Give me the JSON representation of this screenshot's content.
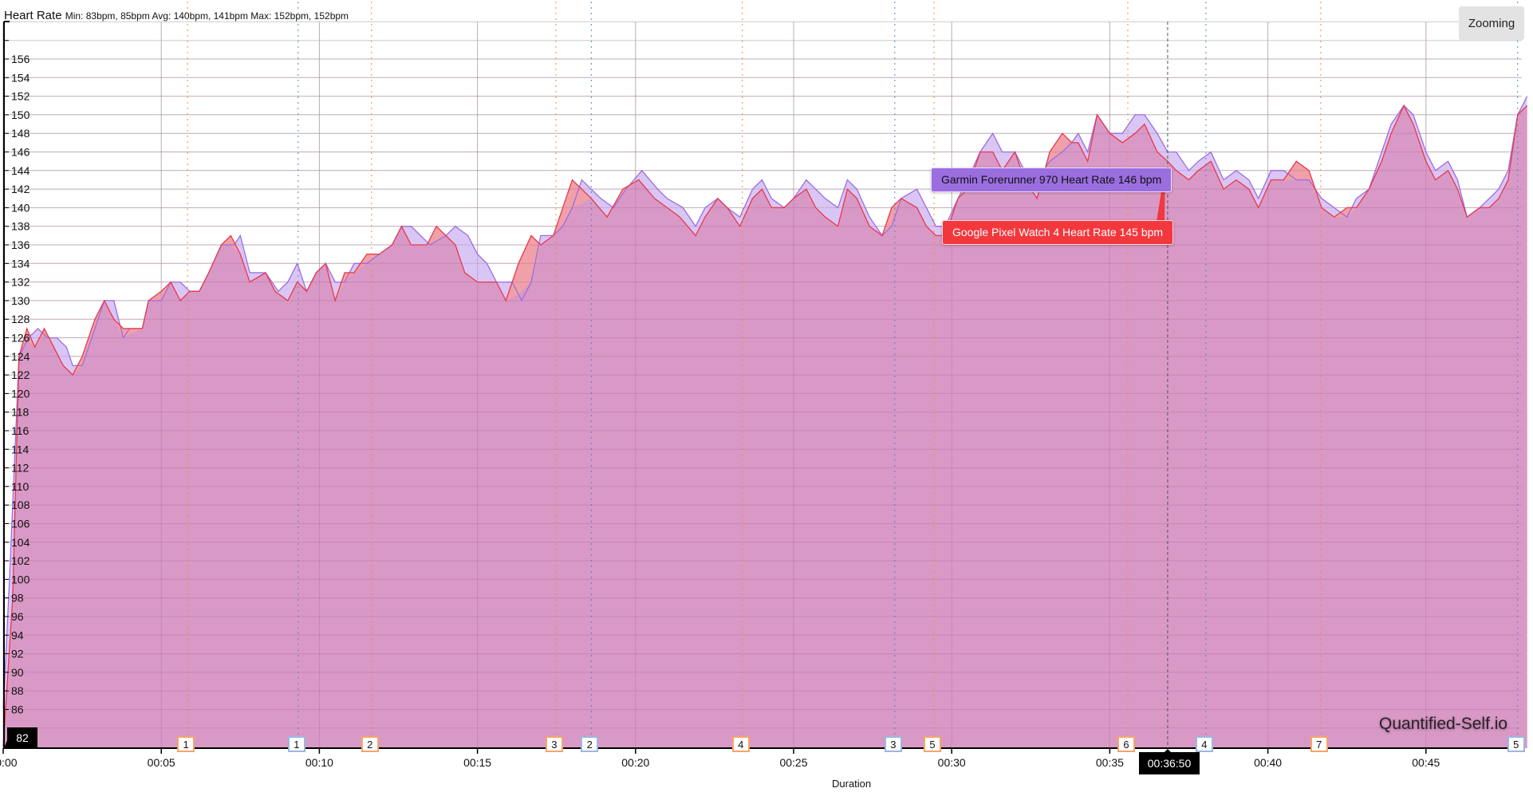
{
  "header": {
    "title": "Heart Rate",
    "stats": "Min: 83bpm, 85bpm Avg: 140bpm, 141bpm Max: 152bpm, 152bpm"
  },
  "zoom_button": {
    "label": "Zooming"
  },
  "watermark": "Quantified-Self.io",
  "cursor": {
    "time_label": "00:36:50",
    "min": 36.83,
    "y_badge": "82"
  },
  "tooltips": [
    {
      "label": "Garmin Forerunner 970 Heart Rate 146 bpm",
      "color": "#9b6ee0"
    },
    {
      "label": "Google Pixel Watch 4 Heart Rate 145 bpm",
      "color": "#f2383d"
    }
  ],
  "colors": {
    "fill": "#d999c6",
    "garmin_line": "#9b6ee0",
    "garmin_fill": "#d9c6f5",
    "pixel_line": "#e8384a",
    "pixel_fill": "#f0a0a8",
    "orange_lap": "#f4a46a",
    "blue_lap": "#9ab8dc",
    "grid": "#cccccc"
  },
  "chart_data": {
    "type": "area",
    "title": "Heart Rate",
    "xlabel": "Duration",
    "ylabel": "",
    "x_unit": "minutes",
    "xlim": [
      0,
      48.2
    ],
    "ylim": [
      82,
      160
    ],
    "yticks": [
      86,
      88,
      90,
      92,
      94,
      96,
      98,
      100,
      102,
      104,
      106,
      108,
      110,
      112,
      114,
      116,
      118,
      120,
      122,
      124,
      126,
      128,
      130,
      132,
      134,
      136,
      138,
      140,
      142,
      144,
      146,
      148,
      150,
      152,
      154,
      156
    ],
    "xticks": [
      {
        "min": 0,
        "label": "00:00"
      },
      {
        "min": 5,
        "label": "00:05"
      },
      {
        "min": 10,
        "label": "00:10"
      },
      {
        "min": 15,
        "label": "00:15"
      },
      {
        "min": 20,
        "label": "00:20"
      },
      {
        "min": 25,
        "label": "00:25"
      },
      {
        "min": 30,
        "label": "00:30"
      },
      {
        "min": 35,
        "label": "00:35"
      },
      {
        "min": 40,
        "label": "00:40"
      },
      {
        "min": 45,
        "label": "00:45"
      }
    ],
    "grid": true,
    "legend": "none",
    "series": [
      {
        "name": "Garmin Forerunner 970 Heart Rate",
        "min": 83,
        "avg": 140,
        "max": 152,
        "points": [
          [
            0,
            86
          ],
          [
            0.2,
            100
          ],
          [
            0.5,
            124
          ],
          [
            0.8,
            126
          ],
          [
            1.1,
            127
          ],
          [
            1.4,
            126
          ],
          [
            1.7,
            126
          ],
          [
            2.0,
            125
          ],
          [
            2.2,
            123
          ],
          [
            2.5,
            123
          ],
          [
            2.8,
            126
          ],
          [
            3.2,
            130
          ],
          [
            3.5,
            130
          ],
          [
            3.8,
            126
          ],
          [
            4.0,
            127
          ],
          [
            4.4,
            127
          ],
          [
            4.6,
            130
          ],
          [
            5.0,
            130
          ],
          [
            5.3,
            132
          ],
          [
            5.6,
            132
          ],
          [
            5.9,
            131
          ],
          [
            6.2,
            131
          ],
          [
            6.5,
            133
          ],
          [
            6.9,
            136
          ],
          [
            7.3,
            136
          ],
          [
            7.5,
            137
          ],
          [
            7.8,
            133
          ],
          [
            8.3,
            133
          ],
          [
            8.7,
            131
          ],
          [
            9.0,
            132
          ],
          [
            9.3,
            134
          ],
          [
            9.6,
            131
          ],
          [
            9.9,
            133
          ],
          [
            10.2,
            134
          ],
          [
            10.5,
            132
          ],
          [
            10.8,
            132
          ],
          [
            11.1,
            134
          ],
          [
            11.5,
            134
          ],
          [
            11.9,
            135
          ],
          [
            12.3,
            136
          ],
          [
            12.6,
            138
          ],
          [
            12.9,
            138
          ],
          [
            13.5,
            136
          ],
          [
            14.0,
            137
          ],
          [
            14.3,
            138
          ],
          [
            14.7,
            137
          ],
          [
            15.0,
            135
          ],
          [
            15.3,
            134
          ],
          [
            15.6,
            132
          ],
          [
            16.1,
            132
          ],
          [
            16.4,
            130
          ],
          [
            16.7,
            132
          ],
          [
            17.0,
            137
          ],
          [
            17.4,
            137
          ],
          [
            17.7,
            138
          ],
          [
            18.0,
            140
          ],
          [
            18.3,
            143
          ],
          [
            18.9,
            141
          ],
          [
            19.3,
            140
          ],
          [
            19.7,
            142
          ],
          [
            20.2,
            144
          ],
          [
            20.7,
            142
          ],
          [
            21.0,
            141
          ],
          [
            21.5,
            140
          ],
          [
            21.9,
            138
          ],
          [
            22.2,
            140
          ],
          [
            22.6,
            141
          ],
          [
            22.9,
            140
          ],
          [
            23.3,
            139
          ],
          [
            23.7,
            142
          ],
          [
            24.0,
            143
          ],
          [
            24.3,
            141
          ],
          [
            24.7,
            140
          ],
          [
            25.0,
            141
          ],
          [
            25.4,
            143
          ],
          [
            25.7,
            142
          ],
          [
            26.0,
            141
          ],
          [
            26.4,
            140
          ],
          [
            26.7,
            143
          ],
          [
            27.0,
            142
          ],
          [
            27.4,
            139
          ],
          [
            27.8,
            137
          ],
          [
            28.1,
            138
          ],
          [
            28.4,
            141
          ],
          [
            28.9,
            142
          ],
          [
            29.2,
            140
          ],
          [
            29.5,
            138
          ],
          [
            29.8,
            138
          ],
          [
            30.2,
            141
          ],
          [
            30.5,
            143
          ],
          [
            30.9,
            146
          ],
          [
            31.3,
            148
          ],
          [
            31.6,
            146
          ],
          [
            32.0,
            146
          ],
          [
            32.3,
            144
          ],
          [
            32.7,
            143
          ],
          [
            33.1,
            145
          ],
          [
            33.5,
            146
          ],
          [
            33.8,
            147
          ],
          [
            34.0,
            148
          ],
          [
            34.3,
            146
          ],
          [
            34.6,
            150
          ],
          [
            35.0,
            148
          ],
          [
            35.4,
            148
          ],
          [
            35.8,
            150
          ],
          [
            36.1,
            150
          ],
          [
            36.5,
            148
          ],
          [
            36.83,
            146
          ],
          [
            37.1,
            146
          ],
          [
            37.5,
            144
          ],
          [
            37.8,
            145
          ],
          [
            38.2,
            146
          ],
          [
            38.6,
            143
          ],
          [
            39.0,
            144
          ],
          [
            39.4,
            143
          ],
          [
            39.7,
            141
          ],
          [
            40.1,
            144
          ],
          [
            40.5,
            144
          ],
          [
            40.9,
            143
          ],
          [
            41.3,
            143
          ],
          [
            41.7,
            141
          ],
          [
            42.1,
            140
          ],
          [
            42.5,
            139
          ],
          [
            42.8,
            141
          ],
          [
            43.2,
            142
          ],
          [
            43.6,
            146
          ],
          [
            43.9,
            149
          ],
          [
            44.3,
            151
          ],
          [
            44.6,
            150
          ],
          [
            45.0,
            146
          ],
          [
            45.3,
            144
          ],
          [
            45.7,
            145
          ],
          [
            46.0,
            143
          ],
          [
            46.3,
            139
          ],
          [
            46.7,
            140
          ],
          [
            47.0,
            141
          ],
          [
            47.3,
            142
          ],
          [
            47.6,
            144
          ],
          [
            47.9,
            150
          ],
          [
            48.2,
            152
          ]
        ]
      },
      {
        "name": "Google Pixel Watch 4 Heart Rate",
        "min": 85,
        "avg": 141,
        "max": 152,
        "points": [
          [
            0,
            82
          ],
          [
            0.3,
            98
          ],
          [
            0.5,
            124
          ],
          [
            0.75,
            127
          ],
          [
            1.0,
            125
          ],
          [
            1.3,
            127
          ],
          [
            1.6,
            125
          ],
          [
            1.9,
            123
          ],
          [
            2.2,
            122
          ],
          [
            2.5,
            124
          ],
          [
            2.9,
            128
          ],
          [
            3.2,
            130
          ],
          [
            3.5,
            128
          ],
          [
            3.8,
            127
          ],
          [
            4.4,
            127
          ],
          [
            4.6,
            130
          ],
          [
            5.0,
            131
          ],
          [
            5.3,
            132
          ],
          [
            5.6,
            130
          ],
          [
            5.9,
            131
          ],
          [
            6.2,
            131
          ],
          [
            6.5,
            133
          ],
          [
            6.9,
            136
          ],
          [
            7.2,
            137
          ],
          [
            7.5,
            135
          ],
          [
            7.8,
            132
          ],
          [
            8.3,
            133
          ],
          [
            8.6,
            131
          ],
          [
            9.0,
            130
          ],
          [
            9.3,
            132
          ],
          [
            9.6,
            131
          ],
          [
            9.9,
            133
          ],
          [
            10.2,
            134
          ],
          [
            10.5,
            130
          ],
          [
            10.8,
            133
          ],
          [
            11.1,
            133
          ],
          [
            11.5,
            135
          ],
          [
            11.9,
            135
          ],
          [
            12.3,
            136
          ],
          [
            12.6,
            138
          ],
          [
            12.9,
            136
          ],
          [
            13.4,
            136
          ],
          [
            13.7,
            138
          ],
          [
            14.0,
            137
          ],
          [
            14.3,
            136
          ],
          [
            14.6,
            133
          ],
          [
            15.0,
            132
          ],
          [
            15.6,
            132
          ],
          [
            15.9,
            130
          ],
          [
            16.3,
            134
          ],
          [
            16.7,
            137
          ],
          [
            17.0,
            136
          ],
          [
            17.4,
            137
          ],
          [
            17.7,
            140
          ],
          [
            18.0,
            143
          ],
          [
            18.6,
            141
          ],
          [
            19.1,
            139
          ],
          [
            19.6,
            142
          ],
          [
            20.1,
            143
          ],
          [
            20.6,
            141
          ],
          [
            21.0,
            140
          ],
          [
            21.4,
            139
          ],
          [
            21.9,
            137
          ],
          [
            22.2,
            139
          ],
          [
            22.6,
            141
          ],
          [
            22.9,
            140
          ],
          [
            23.3,
            138
          ],
          [
            23.7,
            141
          ],
          [
            24.0,
            142
          ],
          [
            24.3,
            140
          ],
          [
            24.7,
            140
          ],
          [
            25.0,
            141
          ],
          [
            25.4,
            142
          ],
          [
            25.7,
            140
          ],
          [
            26.0,
            139
          ],
          [
            26.4,
            138
          ],
          [
            26.7,
            142
          ],
          [
            27.0,
            141
          ],
          [
            27.4,
            138
          ],
          [
            27.8,
            137
          ],
          [
            28.1,
            140
          ],
          [
            28.4,
            141
          ],
          [
            28.9,
            140
          ],
          [
            29.2,
            138
          ],
          [
            29.5,
            137
          ],
          [
            29.8,
            137
          ],
          [
            30.2,
            141
          ],
          [
            30.5,
            142
          ],
          [
            30.9,
            146
          ],
          [
            31.3,
            146
          ],
          [
            31.6,
            144
          ],
          [
            32.0,
            146
          ],
          [
            32.3,
            143
          ],
          [
            32.7,
            141
          ],
          [
            33.1,
            146
          ],
          [
            33.5,
            148
          ],
          [
            33.8,
            147
          ],
          [
            34.0,
            147
          ],
          [
            34.3,
            145
          ],
          [
            34.6,
            150
          ],
          [
            35.0,
            148
          ],
          [
            35.4,
            147
          ],
          [
            35.8,
            148
          ],
          [
            36.1,
            149
          ],
          [
            36.5,
            146
          ],
          [
            36.83,
            145
          ],
          [
            37.1,
            144
          ],
          [
            37.5,
            143
          ],
          [
            37.8,
            144
          ],
          [
            38.2,
            145
          ],
          [
            38.6,
            142
          ],
          [
            39.0,
            143
          ],
          [
            39.4,
            142
          ],
          [
            39.7,
            140
          ],
          [
            40.1,
            143
          ],
          [
            40.5,
            143
          ],
          [
            40.9,
            145
          ],
          [
            41.3,
            144
          ],
          [
            41.7,
            140
          ],
          [
            42.1,
            139
          ],
          [
            42.5,
            140
          ],
          [
            42.8,
            140
          ],
          [
            43.2,
            142
          ],
          [
            43.6,
            145
          ],
          [
            43.9,
            148
          ],
          [
            44.3,
            151
          ],
          [
            44.6,
            149
          ],
          [
            45.0,
            145
          ],
          [
            45.3,
            143
          ],
          [
            45.7,
            144
          ],
          [
            46.0,
            142
          ],
          [
            46.3,
            139
          ],
          [
            46.7,
            140
          ],
          [
            47.0,
            140
          ],
          [
            47.3,
            141
          ],
          [
            47.6,
            143
          ],
          [
            47.9,
            150
          ],
          [
            48.2,
            151
          ]
        ]
      }
    ],
    "laps": [
      {
        "device": "orange",
        "label": "1",
        "min": 5.83
      },
      {
        "device": "blue",
        "label": "1",
        "min": 9.33
      },
      {
        "device": "orange",
        "label": "2",
        "min": 11.65
      },
      {
        "device": "orange",
        "label": "3",
        "min": 17.48
      },
      {
        "device": "blue",
        "label": "2",
        "min": 18.6
      },
      {
        "device": "orange",
        "label": "4",
        "min": 23.38
      },
      {
        "device": "blue",
        "label": "3",
        "min": 28.2
      },
      {
        "device": "orange",
        "label": "5",
        "min": 29.44
      },
      {
        "device": "orange",
        "label": "6",
        "min": 35.57
      },
      {
        "device": "blue",
        "label": "4",
        "min": 38.04
      },
      {
        "device": "orange",
        "label": "7",
        "min": 41.67
      },
      {
        "device": "blue",
        "label": "5",
        "min": 47.9
      }
    ]
  }
}
